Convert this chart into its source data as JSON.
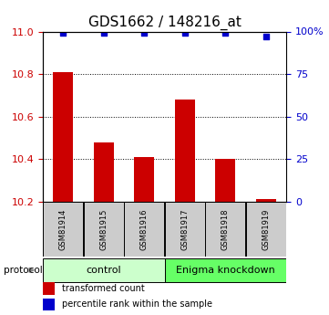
{
  "title": "GDS1662 / 148216_at",
  "samples": [
    "GSM81914",
    "GSM81915",
    "GSM81916",
    "GSM81917",
    "GSM81918",
    "GSM81919"
  ],
  "bar_values": [
    10.81,
    10.48,
    10.41,
    10.68,
    10.4,
    10.21
  ],
  "percentile_values": [
    99,
    99,
    99,
    99,
    99,
    97
  ],
  "ylim_left": [
    10.2,
    11.0
  ],
  "ylim_right": [
    0,
    100
  ],
  "yticks_left": [
    10.2,
    10.4,
    10.6,
    10.8,
    11.0
  ],
  "yticks_right": [
    0,
    25,
    50,
    75,
    100
  ],
  "ytick_right_labels": [
    "0",
    "25",
    "50",
    "75",
    "100%"
  ],
  "bar_color": "#cc0000",
  "percentile_color": "#0000cc",
  "bar_width": 0.5,
  "group_control_label": "control",
  "group_enigma_label": "Enigma knockdown",
  "group_control_color": "#ccffcc",
  "group_enigma_color": "#66ff66",
  "protocol_label": "protocol",
  "legend_bar_label": "transformed count",
  "legend_percentile_label": "percentile rank within the sample",
  "title_fontsize": 11,
  "tick_fontsize": 8,
  "sample_box_color": "#cccccc",
  "gridline_color": "#000000",
  "baseline": 10.2,
  "grid_values": [
    10.4,
    10.6,
    10.8
  ]
}
